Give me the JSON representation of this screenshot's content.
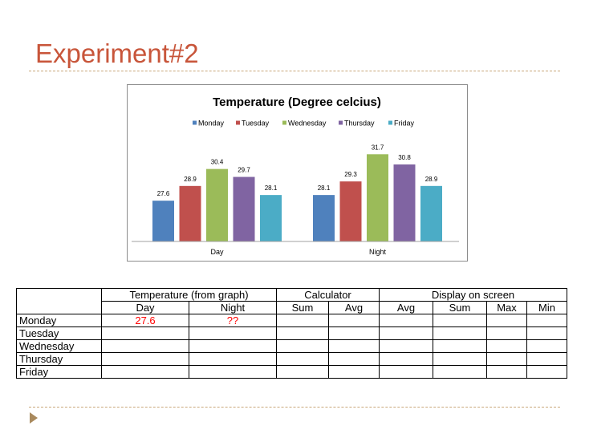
{
  "slide": {
    "title": "Experiment#2"
  },
  "chart_data": {
    "type": "bar",
    "title": "Temperature (Degree celcius)",
    "categories": [
      "Day",
      "Night"
    ],
    "series": [
      {
        "name": "Monday",
        "values": [
          27.6,
          28.1
        ]
      },
      {
        "name": "Tuesday",
        "values": [
          28.9,
          29.3
        ]
      },
      {
        "name": "Wednesday",
        "values": [
          30.4,
          31.7
        ]
      },
      {
        "name": "Thursday",
        "values": [
          29.7,
          30.8
        ]
      },
      {
        "name": "Friday",
        "values": [
          28.1,
          28.9
        ]
      }
    ],
    "colors": [
      "#4f81bd",
      "#c0504d",
      "#9bbb59",
      "#8064a2",
      "#4bacc6"
    ],
    "legend_position": "top",
    "grid": false,
    "data_labels": true,
    "xlabel": "",
    "ylabel": ""
  },
  "table": {
    "group_headers": {
      "temperature": "Temperature (from graph)",
      "calculator": "Calculator",
      "display": "Display on screen"
    },
    "sub_headers": [
      "Day",
      "Night",
      "Sum",
      "Avg",
      "Avg",
      "Sum",
      "Max",
      "Min"
    ],
    "rows": [
      {
        "label": "Monday",
        "day": "27.6",
        "night": "??"
      },
      {
        "label": "Tuesday",
        "day": "",
        "night": ""
      },
      {
        "label": "Wednesday",
        "day": "",
        "night": ""
      },
      {
        "label": "Thursday",
        "day": "",
        "night": ""
      },
      {
        "label": "Friday",
        "day": "",
        "night": ""
      }
    ]
  }
}
